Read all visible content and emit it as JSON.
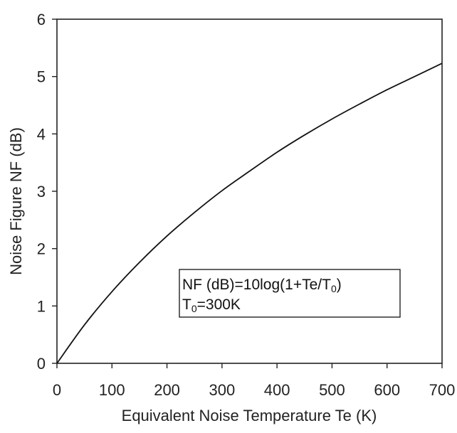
{
  "chart_data": {
    "type": "line",
    "title": "",
    "xlabel": "Equivalent Noise Temperature Te (K)",
    "ylabel": "Noise Figure NF (dB)",
    "xlim": [
      0,
      700
    ],
    "ylim": [
      0,
      6
    ],
    "x_ticks": [
      "0",
      "100",
      "200",
      "300",
      "400",
      "500",
      "600",
      "700"
    ],
    "y_ticks": [
      "0",
      "1",
      "2",
      "3",
      "4",
      "5",
      "6"
    ],
    "grid": false,
    "legend": "none",
    "series": [
      {
        "x": [
          0,
          50,
          100,
          150,
          200,
          250,
          300,
          350,
          400,
          450,
          500,
          550,
          600,
          650,
          700
        ],
        "y": [
          0,
          0.67,
          1.25,
          1.76,
          2.22,
          2.63,
          3.01,
          3.35,
          3.68,
          3.98,
          4.26,
          4.52,
          4.77,
          5.0,
          5.23
        ]
      }
    ],
    "annotation": {
      "line1_prefix": "NF (dB)=10log(1+Te/T",
      "line1_sub": "0",
      "line1_suffix": ")",
      "line2_prefix": "T",
      "line2_sub": "0",
      "line2_suffix": "=300K"
    }
  }
}
